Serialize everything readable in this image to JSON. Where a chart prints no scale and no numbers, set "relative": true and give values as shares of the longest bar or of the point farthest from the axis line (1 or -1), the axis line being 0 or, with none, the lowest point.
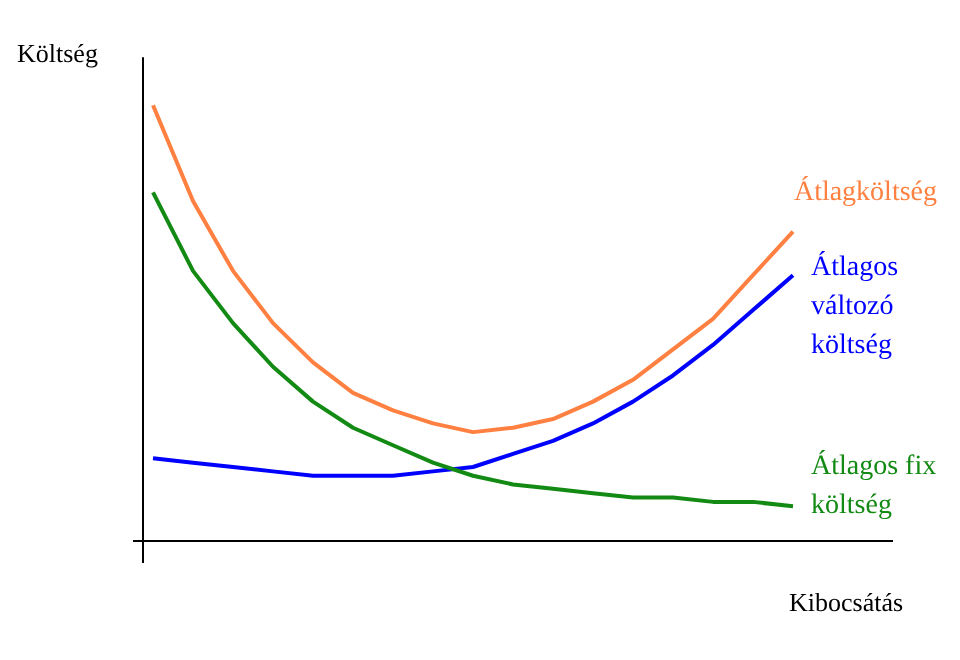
{
  "chart_data": {
    "type": "line",
    "relative": true,
    "ylabel": "Költség",
    "xlabel": "Kibocsátás",
    "grid": false,
    "marker": "none",
    "line_style": "solid",
    "categories": [
      null,
      null,
      null,
      null,
      null,
      null,
      null,
      null,
      null,
      null,
      null,
      null,
      null,
      null,
      null,
      null,
      null
    ],
    "series": [
      {
        "name": "Átlagköltség",
        "color": "#ff8040",
        "values": [
          1.0,
          0.78,
          0.62,
          0.5,
          0.41,
          0.34,
          0.3,
          0.27,
          0.25,
          0.26,
          0.28,
          0.32,
          0.37,
          0.44,
          0.51,
          0.61,
          0.71
        ]
      },
      {
        "name": "Átlagos\nváltozó\nköltség",
        "color": "#0000ff",
        "values": [
          0.19,
          0.18,
          0.17,
          0.16,
          0.15,
          0.15,
          0.15,
          0.16,
          0.17,
          0.2,
          0.23,
          0.27,
          0.32,
          0.38,
          0.45,
          0.53,
          0.61
        ]
      },
      {
        "name": "Átlagos fix\nköltség",
        "color": "#138a13",
        "values": [
          0.8,
          0.62,
          0.5,
          0.4,
          0.32,
          0.26,
          0.22,
          0.18,
          0.15,
          0.13,
          0.12,
          0.11,
          0.1,
          0.1,
          0.09,
          0.09,
          0.08
        ]
      }
    ]
  }
}
